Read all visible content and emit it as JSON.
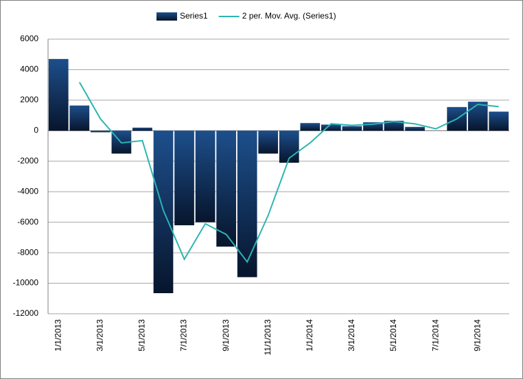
{
  "chart_data": {
    "type": "bar",
    "categories": [
      "1/1/2013",
      null,
      "3/1/2013",
      null,
      "5/1/2013",
      null,
      "7/1/2013",
      null,
      "9/1/2013",
      null,
      "11/1/2013",
      null,
      "1/1/2014",
      null,
      "3/1/2014",
      null,
      "5/1/2014",
      null,
      "7/1/2014",
      null,
      "9/1/2014",
      null
    ],
    "series": [
      {
        "name": "Series1",
        "color": "#0f2a52",
        "type": "bar",
        "values": [
          4700,
          1650,
          -100,
          -1500,
          200,
          -10650,
          -6200,
          -6000,
          -7600,
          -9600,
          -1500,
          -2100,
          500,
          400,
          300,
          550,
          650,
          250,
          0,
          1550,
          1900,
          1250
        ]
      },
      {
        "name": "2 per. Mov. Avg. (Series1)",
        "color": "#2bb5b0",
        "type": "line",
        "values": [
          null,
          3175,
          775,
          -800,
          -650,
          -5225,
          -8425,
          -6100,
          -6800,
          -8600,
          -5550,
          -1800,
          -800,
          450,
          350,
          425,
          600,
          450,
          125,
          775,
          1725,
          1575
        ]
      }
    ],
    "ylim": [
      -12000,
      6000
    ],
    "yticks": [
      -12000,
      -10000,
      -8000,
      -6000,
      -4000,
      -2000,
      0,
      2000,
      4000,
      6000
    ],
    "grid": true,
    "legend": "top"
  }
}
